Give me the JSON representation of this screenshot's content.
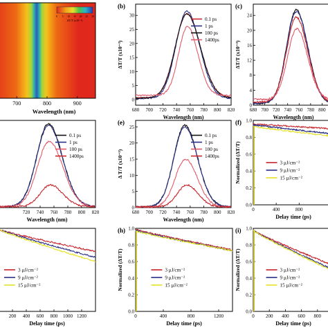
{
  "colors": {
    "red": "#c8242b",
    "blue": "#2a2f86",
    "black": "#111111",
    "pink": "#e05a6a",
    "yellow": "#e6e22a",
    "axis": "#000000"
  },
  "chart_data": [
    {
      "id": "a",
      "type": "heatmap",
      "panel_label": "",
      "xlabel": "Wavelength (nm)",
      "ylabel": "",
      "xlim": [
        640,
        960
      ],
      "x_ticks": [
        "700",
        "800",
        "900"
      ],
      "peak_wavelength": 757,
      "colorbar": {
        "label": "ΔT/T (x10⁻³)",
        "ticks": [
          "0",
          "5",
          "10",
          "15",
          "20",
          "25",
          "30"
        ],
        "range": [
          0,
          30
        ]
      }
    },
    {
      "id": "b",
      "type": "line",
      "panel_label": "(b)",
      "xlabel": "Wavelength (nm)",
      "ylabel": "ΔT/T (x10⁻³)",
      "xlim": [
        680,
        820
      ],
      "ylim": [
        -2,
        34
      ],
      "x_ticks": [
        "680",
        "700",
        "720",
        "740",
        "760",
        "780",
        "800",
        "820"
      ],
      "y_ticks": [
        "0",
        "5",
        "10",
        "15",
        "20",
        "25",
        "30"
      ],
      "legend": [
        "0.1   ps",
        "1     ps",
        "100   ps",
        "1400ps"
      ],
      "series": [
        {
          "name": "0.1   ps",
          "color": "red",
          "peak": 30.5,
          "center": 755,
          "width": 17,
          "base": 0.6
        },
        {
          "name": "1     ps",
          "color": "blue",
          "peak": 31.5,
          "center": 755,
          "width": 16,
          "base": 0.4
        },
        {
          "name": "100   ps",
          "color": "black",
          "peak": 30.5,
          "center": 755,
          "width": 17,
          "base": 0.5
        },
        {
          "name": "1400ps",
          "color": "pink",
          "peak": 26.0,
          "center": 756,
          "width": 13,
          "base": 1.5
        }
      ]
    },
    {
      "id": "c",
      "type": "line",
      "panel_label": "(c)",
      "xlabel": "Wavelength (nm)",
      "ylabel": "ΔT/T (x10⁻³)",
      "xlim": [
        680,
        820
      ],
      "ylim": [
        0,
        27
      ],
      "x_ticks": [
        "680",
        "700",
        "720",
        "740",
        "760",
        "780",
        "800",
        "820"
      ],
      "y_ticks": [
        "0",
        "4",
        "8",
        "12",
        "16",
        "20",
        "24"
      ],
      "legend": [],
      "series": [
        {
          "name": "",
          "color": "black",
          "peak": 25.5,
          "center": 755,
          "width": 17,
          "base": 0.5
        },
        {
          "name": "",
          "color": "blue",
          "peak": 25.0,
          "center": 755,
          "width": 17,
          "base": 0.5
        },
        {
          "name": "",
          "color": "red",
          "peak": 23.5,
          "center": 755,
          "width": 17,
          "base": 0.8
        },
        {
          "name": "",
          "color": "pink",
          "peak": 20.5,
          "center": 756,
          "width": 16,
          "base": 1.5
        }
      ]
    },
    {
      "id": "d",
      "type": "line",
      "panel_label": "",
      "xlabel": "Wavelength (nm)",
      "ylabel": "",
      "xlim": [
        680,
        820
      ],
      "ylim": [
        0,
        27
      ],
      "x_ticks": [
        "720",
        "740",
        "760",
        "780",
        "800",
        "820"
      ],
      "y_ticks": [],
      "legend": [
        "0.1   ps",
        "1     ps",
        "100   ps",
        "1400ps"
      ],
      "series": [
        {
          "name": "0.1   ps",
          "color": "black",
          "peak": 26.0,
          "center": 752,
          "width": 17,
          "base": 0.3
        },
        {
          "name": "1     ps",
          "color": "blue",
          "peak": 25.5,
          "center": 752,
          "width": 17,
          "base": 0.3
        },
        {
          "name": "100   ps",
          "color": "pink",
          "peak": 20.5,
          "center": 753,
          "width": 17,
          "base": 0.3
        },
        {
          "name": "1400ps",
          "color": "red",
          "peak": 7.0,
          "center": 755,
          "width": 15,
          "base": 0.3
        }
      ]
    },
    {
      "id": "e",
      "type": "line",
      "panel_label": "(e)",
      "xlabel": "Wavelength (nm)",
      "ylabel": "Δ T/T (x10⁻³)",
      "xlim": [
        680,
        820
      ],
      "ylim": [
        0,
        27
      ],
      "x_ticks": [
        "680",
        "700",
        "720",
        "740",
        "760",
        "780",
        "800",
        "820"
      ],
      "y_ticks": [
        "0",
        "5",
        "10",
        "15",
        "20",
        "25"
      ],
      "legend": [
        "0.1   ps",
        "1     ps",
        "100   ps",
        "1400ps"
      ],
      "series": [
        {
          "name": "0.1   ps",
          "color": "black",
          "peak": 25.5,
          "center": 752,
          "width": 16,
          "base": 0.2
        },
        {
          "name": "1     ps",
          "color": "blue",
          "peak": 25.0,
          "center": 752,
          "width": 16,
          "base": 0.2
        },
        {
          "name": "100   ps",
          "color": "pink",
          "peak": 15.0,
          "center": 753,
          "width": 15,
          "base": 0.2
        },
        {
          "name": "1400ps",
          "color": "red",
          "peak": 7.0,
          "center": 755,
          "width": 14,
          "base": 0.2
        }
      ]
    },
    {
      "id": "f",
      "type": "line",
      "panel_label": "(f)",
      "xlabel": "Delay time (ps)",
      "ylabel": "Normalized (ΔT/T)",
      "xlim": [
        0,
        1400
      ],
      "ylim": [
        0,
        1.0
      ],
      "x_ticks": [
        "0",
        "400",
        "800"
      ],
      "y_ticks": [
        "0.0",
        "0.2",
        "0.4",
        "0.6",
        "0.8",
        "1.0"
      ],
      "legend": [
        "3  μJ/cm⁻²",
        "9  μJ/cm⁻²",
        "15 μJ/cm⁻²"
      ],
      "series": [
        {
          "name": "3  μJ/cm⁻²",
          "color": "red",
          "start": 0.96,
          "end": 0.9
        },
        {
          "name": "9  μJ/cm⁻²",
          "color": "blue",
          "start": 0.95,
          "end": 0.84
        },
        {
          "name": "15 μJ/cm⁻²",
          "color": "yellow",
          "start": 0.93,
          "end": 0.81
        }
      ]
    },
    {
      "id": "g",
      "type": "line",
      "panel_label": "",
      "xlabel": "Delay time (ps)",
      "ylabel": "",
      "xlim": [
        0,
        1400
      ],
      "ylim": [
        0,
        1.0
      ],
      "x_ticks": [
        "200",
        "400",
        "600",
        "800",
        "1000",
        "1200"
      ],
      "y_ticks": [],
      "legend": [
        "3  μJ/cm⁻²",
        "9  μJ/cm⁻²",
        "15 μJ/cm⁻²"
      ],
      "series": [
        {
          "name": "3  μJ/cm⁻²",
          "color": "red",
          "start": 0.99,
          "end": 0.72
        },
        {
          "name": "9  μJ/cm⁻²",
          "color": "blue",
          "start": 0.99,
          "end": 0.65
        },
        {
          "name": "15 μJ/cm⁻²",
          "color": "yellow",
          "start": 0.99,
          "end": 0.6
        }
      ]
    },
    {
      "id": "h",
      "type": "line",
      "panel_label": "(h)",
      "xlabel": "Delay time (ps)",
      "ylabel": "Normalized (ΔT/T)",
      "xlim": [
        0,
        1400
      ],
      "ylim": [
        0,
        1.0
      ],
      "x_ticks": [
        "0",
        "400",
        "800",
        "1200"
      ],
      "y_ticks": [
        "0.0",
        "0.2",
        "0.4",
        "0.6",
        "0.8",
        "1.0"
      ],
      "legend": [
        "3  μJ/cm⁻²",
        "9  μJ/cm⁻²",
        "15 μJ/cm⁻²"
      ],
      "series": [
        {
          "name": "3  μJ/cm⁻²",
          "color": "red",
          "start": 0.99,
          "end": 0.74
        },
        {
          "name": "9  μJ/cm⁻²",
          "color": "blue",
          "start": 0.98,
          "end": 0.73
        },
        {
          "name": "15 μJ/cm⁻²",
          "color": "yellow",
          "start": 0.97,
          "end": 0.73
        }
      ]
    },
    {
      "id": "i",
      "type": "line",
      "panel_label": "(i)",
      "xlabel": "Delay time (ps)",
      "ylabel": "Normalized (ΔT/T)",
      "xlim": [
        0,
        1000
      ],
      "ylim": [
        0,
        1.0
      ],
      "x_ticks": [
        "0",
        "200",
        "400",
        "600",
        "800"
      ],
      "y_ticks": [
        "0.0",
        "0.2",
        "0.4",
        "0.6",
        "0.8",
        "1.0"
      ],
      "legend": [
        "3  μJ/cm⁻²",
        "9  μJ/cm⁻²",
        "15 μJ/cm⁻²"
      ],
      "series": [
        {
          "name": "3  μJ/cm⁻²",
          "color": "red",
          "start": 0.98,
          "end": 0.55
        },
        {
          "name": "9  μJ/cm⁻²",
          "color": "blue",
          "start": 0.98,
          "end": 0.5
        },
        {
          "name": "15 μJ/cm⁻²",
          "color": "yellow",
          "start": 0.98,
          "end": 0.48
        }
      ]
    }
  ]
}
